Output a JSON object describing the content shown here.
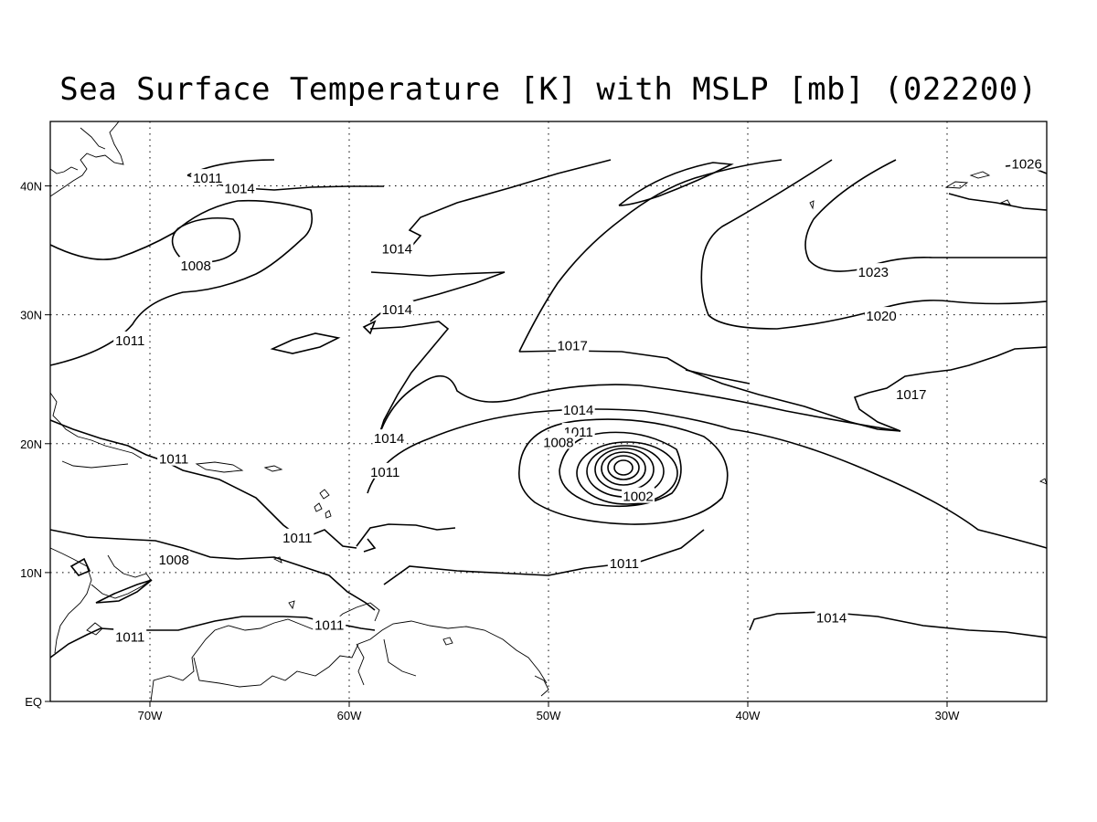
{
  "title": "Sea Surface Temperature [K] with MSLP [mb] (022200)",
  "map": {
    "lon_range": [
      -75,
      -25
    ],
    "lat_range": [
      0,
      45
    ],
    "gridlines_dotted": true,
    "lon_ticks": [
      {
        "lon": -70,
        "label": "70W"
      },
      {
        "lon": -60,
        "label": "60W"
      },
      {
        "lon": -50,
        "label": "50W"
      },
      {
        "lon": -40,
        "label": "40W"
      },
      {
        "lon": -30,
        "label": "30W"
      }
    ],
    "lat_ticks": [
      {
        "lat": 0,
        "label": "EQ"
      },
      {
        "lat": 10,
        "label": "10N"
      },
      {
        "lat": 20,
        "label": "20N"
      },
      {
        "lat": 30,
        "label": "30N"
      },
      {
        "lat": 40,
        "label": "40N"
      }
    ]
  },
  "isobar_labels": [
    {
      "text": "1026",
      "lon": -26.0,
      "lat": 41.7
    },
    {
      "text": "1023",
      "lon": -33.7,
      "lat": 33.3
    },
    {
      "text": "1020",
      "lon": -33.3,
      "lat": 29.9
    },
    {
      "text": "1017",
      "lon": -31.8,
      "lat": 23.8
    },
    {
      "text": "1017",
      "lon": -48.8,
      "lat": 27.6
    },
    {
      "text": "1014",
      "lon": -65.5,
      "lat": 39.8
    },
    {
      "text": "1014",
      "lon": -57.6,
      "lat": 35.1
    },
    {
      "text": "1014",
      "lon": -57.6,
      "lat": 30.4
    },
    {
      "text": "1014",
      "lon": -48.5,
      "lat": 22.6
    },
    {
      "text": "1014",
      "lon": -58.0,
      "lat": 20.4
    },
    {
      "text": "1014",
      "lon": -35.8,
      "lat": 6.5
    },
    {
      "text": "1011",
      "lon": -67.1,
      "lat": 40.6
    },
    {
      "text": "1011",
      "lon": -71.0,
      "lat": 28.0
    },
    {
      "text": "1011",
      "lon": -48.5,
      "lat": 20.9
    },
    {
      "text": "1011",
      "lon": -68.8,
      "lat": 18.8
    },
    {
      "text": "1011",
      "lon": -58.2,
      "lat": 17.8
    },
    {
      "text": "1011",
      "lon": -62.6,
      "lat": 12.7
    },
    {
      "text": "1011",
      "lon": -46.2,
      "lat": 10.7
    },
    {
      "text": "1011",
      "lon": -61.0,
      "lat": 5.9
    },
    {
      "text": "1011",
      "lon": -71.0,
      "lat": 5.0
    },
    {
      "text": "1008",
      "lon": -67.7,
      "lat": 33.8
    },
    {
      "text": "1008",
      "lon": -49.5,
      "lat": 20.1
    },
    {
      "text": "1008",
      "lon": -68.8,
      "lat": 11.0
    },
    {
      "text": "1002",
      "lon": -45.5,
      "lat": 15.9
    }
  ]
}
